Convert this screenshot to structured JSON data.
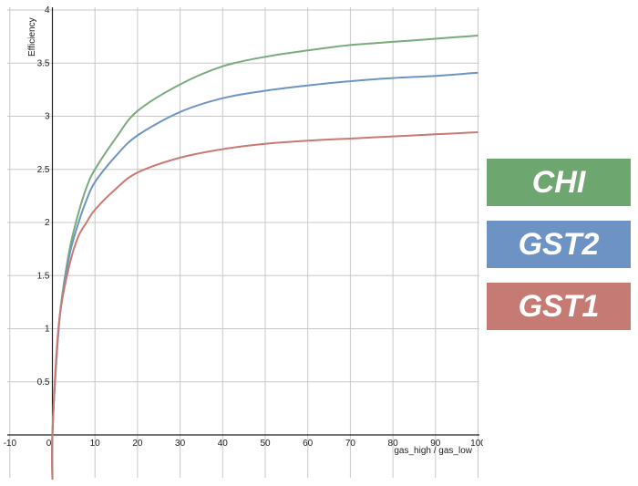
{
  "chart_data": {
    "type": "line",
    "xlabel": "gas_high / gas_low",
    "ylabel": "Efficiency",
    "xlim": [
      -10,
      102
    ],
    "ylim": [
      -0.4,
      4.05
    ],
    "x_ticks": [
      -10,
      0,
      10,
      20,
      30,
      40,
      50,
      60,
      70,
      80,
      90,
      100
    ],
    "y_ticks": [
      0.5,
      1,
      1.5,
      2,
      2.5,
      3,
      3.5,
      4
    ],
    "y_tick_labels": [
      "0.5",
      "1",
      "1.5",
      "2",
      "2.5",
      "3",
      "3.5",
      "4"
    ],
    "x_tick_labels": [
      "-10",
      "0",
      "10",
      "20",
      "30",
      "40",
      "50",
      "60",
      "70",
      "80",
      "90",
      "100"
    ],
    "grid": true,
    "x": [
      0,
      1,
      2,
      4,
      6,
      8,
      10,
      15,
      20,
      30,
      40,
      50,
      60,
      70,
      80,
      90,
      100
    ],
    "series": [
      {
        "name": "CHI",
        "color": "#7aab7c",
        "values": [
          0.0,
          0.74,
          1.22,
          1.74,
          2.07,
          2.33,
          2.5,
          2.8,
          3.05,
          3.3,
          3.47,
          3.56,
          3.62,
          3.67,
          3.7,
          3.73,
          3.76
        ]
      },
      {
        "name": "GST2",
        "color": "#6e95c2",
        "values": [
          0.0,
          0.75,
          1.2,
          1.69,
          1.98,
          2.21,
          2.38,
          2.63,
          2.82,
          3.04,
          3.17,
          3.24,
          3.29,
          3.33,
          3.36,
          3.38,
          3.41
        ]
      },
      {
        "name": "GST1",
        "color": "#c97a72",
        "values": [
          0.0,
          0.8,
          1.2,
          1.6,
          1.86,
          2.0,
          2.12,
          2.32,
          2.47,
          2.61,
          2.69,
          2.74,
          2.77,
          2.79,
          2.81,
          2.83,
          2.85
        ]
      }
    ]
  },
  "legend": [
    {
      "label": "CHI",
      "color": "#6ea66f"
    },
    {
      "label": "GST2",
      "color": "#6c93c3"
    },
    {
      "label": "GST1",
      "color": "#c57b73"
    }
  ]
}
